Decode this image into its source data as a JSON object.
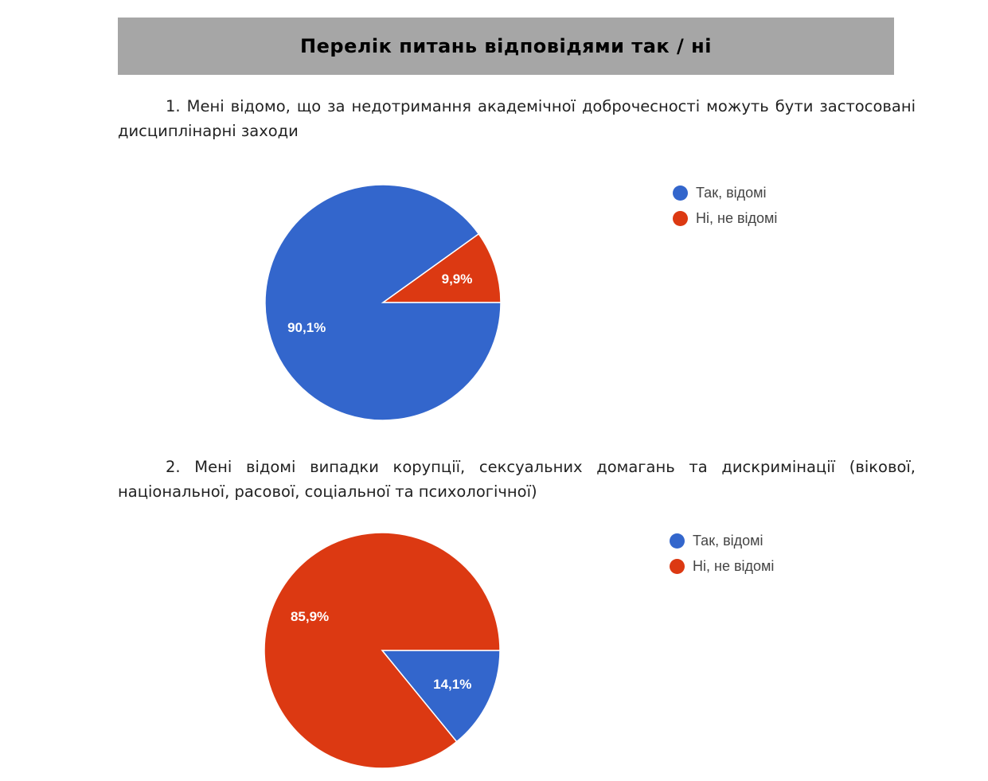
{
  "header": {
    "title": "Перелік питань відповідями так / ні"
  },
  "questions": [
    {
      "text": "1. Мені відомо, що за недотримання академічної доброчесності можуть бути застосовані дисциплінарні заходи"
    },
    {
      "text": "2. Мені відомі випадки корупції, сексуальних домагань та дискримінації (вікової, національної, расової, соціальної та психологічної)"
    }
  ],
  "colors": {
    "yes": "#3366cc",
    "no": "#dc3912"
  },
  "chart_data": [
    {
      "type": "pie",
      "title": "",
      "slices": [
        {
          "label": "Так, відомі",
          "value": 90.1,
          "display": "90,1%",
          "color": "#3366cc"
        },
        {
          "label": "Ні, не відомі",
          "value": 9.9,
          "display": "9,9%",
          "color": "#dc3912"
        }
      ],
      "legend": [
        "Так, відомі",
        "Ні, не відомі"
      ],
      "legend_position": "right"
    },
    {
      "type": "pie",
      "title": "",
      "slices": [
        {
          "label": "Так, відомі",
          "value": 14.1,
          "display": "14,1%",
          "color": "#3366cc"
        },
        {
          "label": "Ні, не відомі",
          "value": 85.9,
          "display": "85,9%",
          "color": "#dc3912"
        }
      ],
      "legend": [
        "Так, відомі",
        "Ні, не відомі"
      ],
      "legend_position": "right"
    }
  ]
}
